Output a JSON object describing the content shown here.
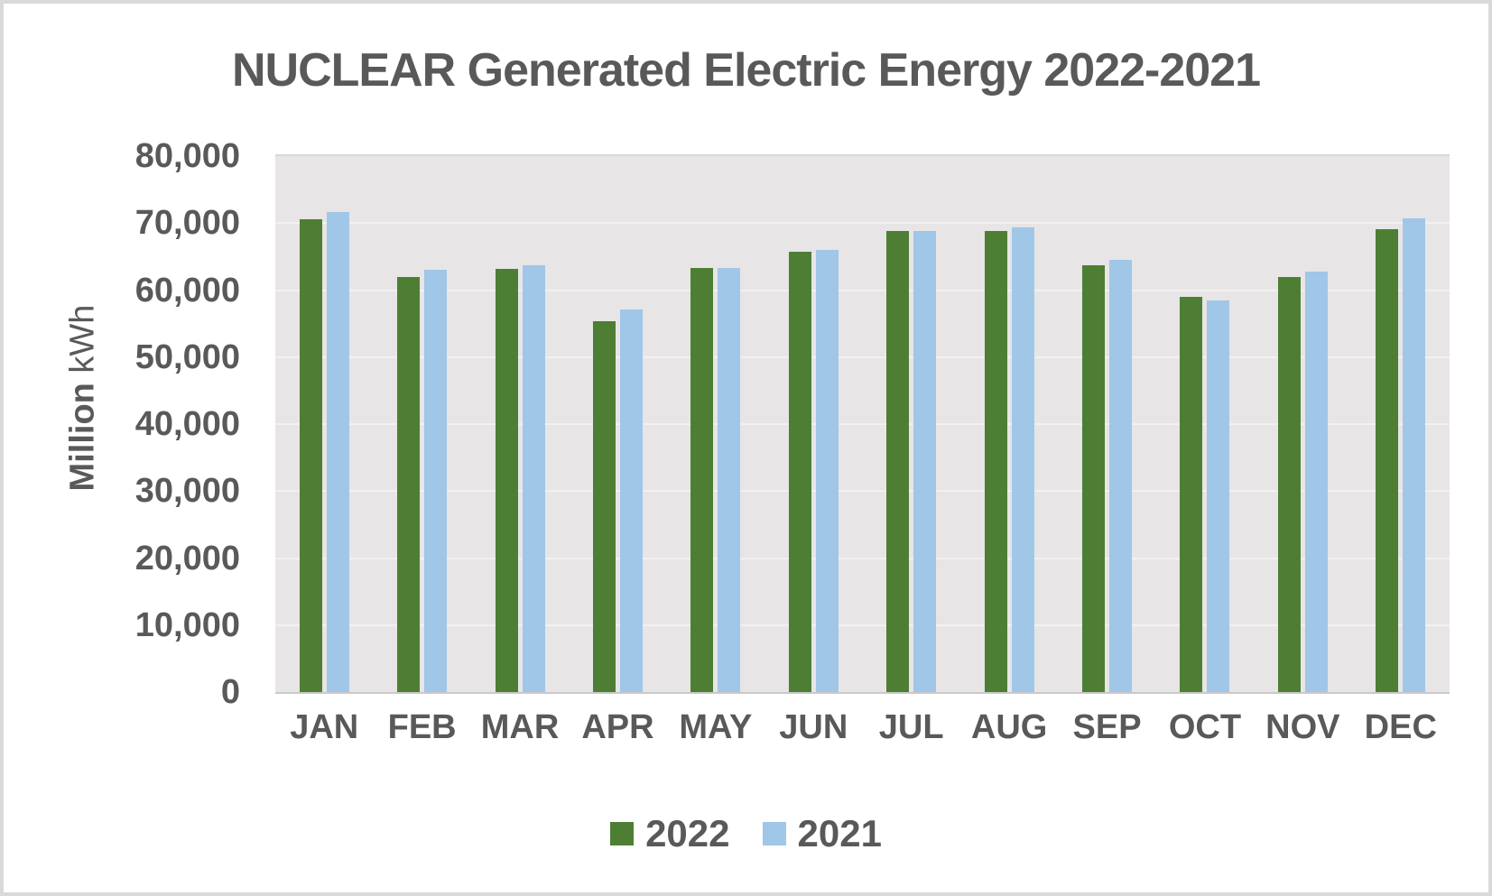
{
  "colors": {
    "series_2022": "#4e7e33",
    "series_2021": "#a0c6e8",
    "plot_background": "#e7e5e6",
    "gridline": "#f2f0f1",
    "axis_line": "#cbc9ca",
    "text": "#595959",
    "canvas_border": "#d9d9d9"
  },
  "chart_data": {
    "type": "bar",
    "title": "NUCLEAR Generated Electric Energy 2022-2021",
    "categories": [
      "JAN",
      "FEB",
      "MAR",
      "APR",
      "MAY",
      "JUN",
      "JUL",
      "AUG",
      "SEP",
      "OCT",
      "NOV",
      "DEC"
    ],
    "series": [
      {
        "name": "2022",
        "color": "#4e7e33",
        "values": [
          70600,
          61900,
          63100,
          55400,
          63300,
          65700,
          68800,
          68800,
          63700,
          59000,
          62000,
          69100
        ]
      },
      {
        "name": "2021",
        "color": "#a0c6e8",
        "values": [
          71600,
          63000,
          63700,
          57100,
          63300,
          66000,
          68800,
          69400,
          64500,
          58400,
          62700,
          70700
        ]
      }
    ],
    "xlabel": "",
    "ylabel_bold": "Million",
    "ylabel_unit": "kWh",
    "ylim": [
      0,
      80000
    ],
    "ytick_step": 10000,
    "ytick_labels": [
      "0",
      "10,000",
      "20,000",
      "30,000",
      "40,000",
      "50,000",
      "60,000",
      "70,000",
      "80,000"
    ],
    "grid": true,
    "legend_position": "bottom"
  }
}
